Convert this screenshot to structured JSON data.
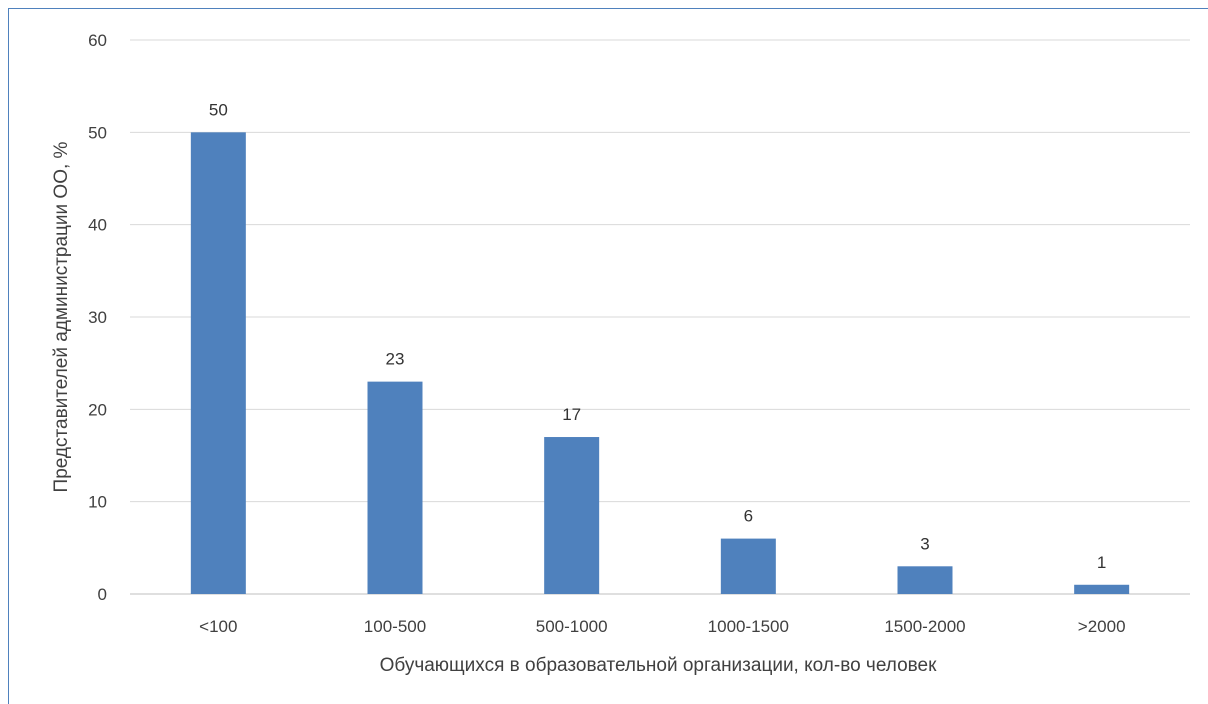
{
  "chart_data": {
    "type": "bar",
    "categories": [
      "<100",
      "100-500",
      "500-1000",
      "1000-1500",
      "1500-2000",
      ">2000"
    ],
    "values": [
      50,
      23,
      17,
      6,
      3,
      1
    ],
    "data_labels": [
      "50",
      "23",
      "17",
      "6",
      "3",
      "1"
    ],
    "title": "",
    "xlabel": "Обучающихся в образовательной организации, кол-во человек",
    "ylabel": "Представителей администрации ОО,   %",
    "ylim": [
      0,
      60
    ],
    "yticks": [
      0,
      10,
      20,
      30,
      40,
      50,
      60
    ],
    "grid": true,
    "legend": "none",
    "bar_color": "#4f81bd",
    "grid_color": "#d9d9d9"
  }
}
